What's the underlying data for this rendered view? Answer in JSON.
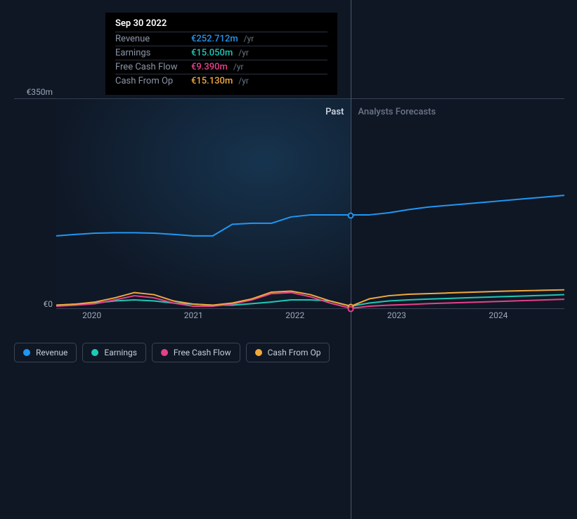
{
  "chart": {
    "type": "line",
    "background_color": "#0f1724",
    "grid_color": "#3a4456",
    "text_color": "#9ca7b8",
    "currency_symbol": "€",
    "y_axis": {
      "max_label": "€350m",
      "zero_label": "€0",
      "max_value": 350,
      "min_value": 0
    },
    "x_axis": {
      "ticks": [
        "2020",
        "2021",
        "2022",
        "2023",
        "2024"
      ],
      "tick_positions_pct": [
        7,
        27,
        47,
        67,
        87
      ],
      "domain_start": 2019.65,
      "domain_end": 2025
    },
    "divider": {
      "position_pct": 58,
      "past_label": "Past",
      "past_label_color": "#d5dce8",
      "forecast_label": "Analysts Forecasts",
      "forecast_label_color": "#6b7688"
    },
    "series": [
      {
        "key": "revenue",
        "label": "Revenue",
        "color": "#2196f3",
        "line_width": 2,
        "points_y": [
          0.655,
          0.648,
          0.642,
          0.64,
          0.64,
          0.642,
          0.648,
          0.655,
          0.655,
          0.6,
          0.595,
          0.595,
          0.565,
          0.555,
          0.555,
          0.555,
          0.555,
          0.545,
          0.53,
          0.518,
          0.51,
          0.502,
          0.494,
          0.486,
          0.478,
          0.47,
          0.462
        ]
      },
      {
        "key": "earnings",
        "label": "Earnings",
        "color": "#1ec9b7",
        "line_width": 2,
        "points_y": [
          0.985,
          0.98,
          0.975,
          0.965,
          0.96,
          0.965,
          0.975,
          0.98,
          0.985,
          0.985,
          0.978,
          0.97,
          0.96,
          0.96,
          0.965,
          0.99,
          0.975,
          0.965,
          0.96,
          0.956,
          0.953,
          0.95,
          0.947,
          0.944,
          0.941,
          0.938,
          0.935
        ]
      },
      {
        "key": "fcf",
        "label": "Free Cash Flow",
        "color": "#e6418b",
        "line_width": 2,
        "points_y": [
          0.99,
          0.985,
          0.978,
          0.96,
          0.94,
          0.95,
          0.975,
          0.99,
          0.99,
          0.98,
          0.96,
          0.93,
          0.925,
          0.945,
          0.975,
          1.0,
          0.99,
          0.985,
          0.982,
          0.978,
          0.975,
          0.972,
          0.969,
          0.966,
          0.963,
          0.96,
          0.957
        ]
      },
      {
        "key": "cfo",
        "label": "Cash From Op",
        "color": "#f0a93d",
        "line_width": 2,
        "points_y": [
          0.985,
          0.98,
          0.97,
          0.95,
          0.925,
          0.935,
          0.965,
          0.98,
          0.985,
          0.975,
          0.955,
          0.923,
          0.918,
          0.935,
          0.965,
          0.99,
          0.955,
          0.94,
          0.933,
          0.93,
          0.927,
          0.924,
          0.921,
          0.918,
          0.916,
          0.914,
          0.912
        ]
      }
    ],
    "series_x_positions_pct": [
      0,
      3.85,
      7.7,
      11.55,
      15.4,
      19.25,
      23.1,
      26.95,
      30.8,
      34.65,
      38.5,
      42.35,
      46.2,
      50.05,
      53.9,
      58,
      61.6,
      65.45,
      69.3,
      73.15,
      77,
      80.85,
      84.7,
      88.55,
      92.4,
      96.25,
      100
    ],
    "hover_index": 15,
    "markers": [
      {
        "series": "revenue",
        "color": "#2196f3"
      },
      {
        "series": "cfo",
        "color": "#f0a93d"
      },
      {
        "series": "fcf",
        "color": "#e6418b"
      }
    ]
  },
  "tooltip": {
    "date": "Sep 30 2022",
    "unit": "/yr",
    "rows": [
      {
        "label": "Revenue",
        "value": "€252.712m",
        "color": "#2196f3"
      },
      {
        "label": "Earnings",
        "value": "€15.050m",
        "color": "#1ec9b7"
      },
      {
        "label": "Free Cash Flow",
        "value": "€9.390m",
        "color": "#e6418b"
      },
      {
        "label": "Cash From Op",
        "value": "€15.130m",
        "color": "#f0a93d"
      }
    ]
  },
  "legend": {
    "items": [
      {
        "label": "Revenue",
        "color": "#2196f3"
      },
      {
        "label": "Earnings",
        "color": "#1ec9b7"
      },
      {
        "label": "Free Cash Flow",
        "color": "#e6418b"
      },
      {
        "label": "Cash From Op",
        "color": "#f0a93d"
      }
    ]
  }
}
